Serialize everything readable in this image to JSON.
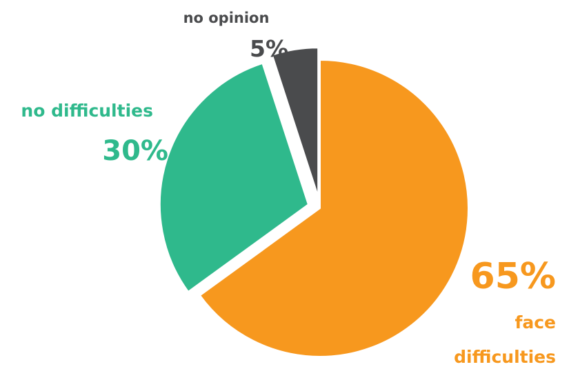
{
  "chart_data": {
    "type": "pie",
    "slices": [
      {
        "label": "face difficulties",
        "label_lines": [
          "face",
          "difficulties"
        ],
        "percent_text": "65%",
        "value": 65,
        "color": "#F7981E",
        "exploded": false
      },
      {
        "label": "no difficulties",
        "label_lines": [
          "no difficulties"
        ],
        "percent_text": "30%",
        "value": 30,
        "color": "#2FB98C",
        "exploded": true
      },
      {
        "label": "no opinion",
        "label_lines": [
          "no opinion"
        ],
        "percent_text": "5%",
        "value": 5,
        "color": "#4A4B4D",
        "exploded": true
      }
    ],
    "start_angle": "12 o'clock",
    "direction": "clockwise"
  }
}
